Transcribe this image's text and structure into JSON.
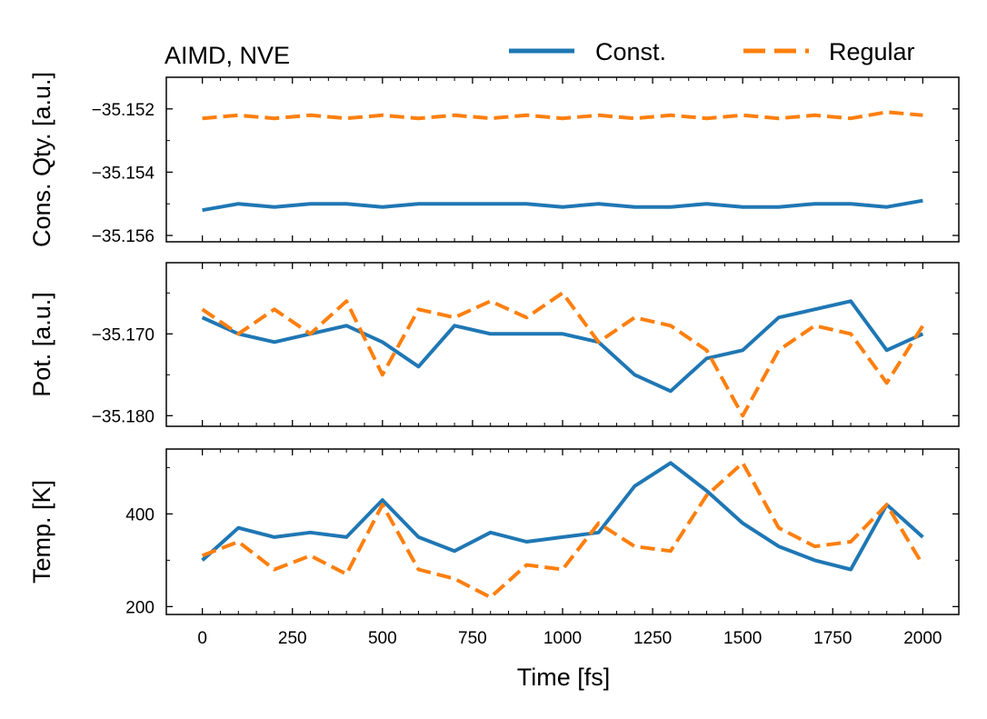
{
  "chart_data": {
    "type": "line",
    "title": "AIMD, NVE",
    "xlabel": "Time [fs]",
    "xlim": [
      -100,
      2100
    ],
    "xticks": [
      0,
      250,
      500,
      750,
      1000,
      1250,
      1500,
      1750,
      2000
    ],
    "xtick_labels": [
      "0",
      "250",
      "500",
      "750",
      "1000",
      "1250",
      "1500",
      "1750",
      "2000"
    ],
    "legend": {
      "placement": "top-right",
      "entries": [
        {
          "name": "Const.",
          "color": "#1f77b4",
          "style": "solid"
        },
        {
          "name": "Regular",
          "color": "#ff7f0e",
          "style": "dashed"
        }
      ]
    },
    "panels": [
      {
        "name": "conserved",
        "ylabel": "Cons. Qty. [a.u.]",
        "ylim": [
          -35.1562,
          -35.151
        ],
        "yticks": [
          -35.152,
          -35.154,
          -35.156
        ],
        "ytick_labels": [
          "−35.152",
          "−35.154",
          "−35.156"
        ],
        "series": [
          {
            "name": "Const.",
            "color": "#1f77b4",
            "style": "solid",
            "x": [
              0,
              100,
              200,
              300,
              400,
              500,
              600,
              700,
              800,
              900,
              1000,
              1100,
              1200,
              1300,
              1400,
              1500,
              1600,
              1700,
              1800,
              1900,
              2000
            ],
            "y": [
              -35.1552,
              -35.155,
              -35.1551,
              -35.155,
              -35.155,
              -35.1551,
              -35.155,
              -35.155,
              -35.155,
              -35.155,
              -35.1551,
              -35.155,
              -35.1551,
              -35.1551,
              -35.155,
              -35.1551,
              -35.1551,
              -35.155,
              -35.155,
              -35.1551,
              -35.1549
            ]
          },
          {
            "name": "Regular",
            "color": "#ff7f0e",
            "style": "dashed",
            "x": [
              0,
              100,
              200,
              300,
              400,
              500,
              600,
              700,
              800,
              900,
              1000,
              1100,
              1200,
              1300,
              1400,
              1500,
              1600,
              1700,
              1800,
              1900,
              2000
            ],
            "y": [
              -35.1523,
              -35.1522,
              -35.1523,
              -35.1522,
              -35.1523,
              -35.1522,
              -35.1523,
              -35.1522,
              -35.1523,
              -35.1522,
              -35.1523,
              -35.1522,
              -35.1523,
              -35.1522,
              -35.1523,
              -35.1522,
              -35.1523,
              -35.1522,
              -35.1523,
              -35.1521,
              -35.1522
            ]
          }
        ]
      },
      {
        "name": "potential",
        "ylabel": "Pot. [a.u.]",
        "ylim": [
          -35.1813,
          -35.1613
        ],
        "yticks": [
          -35.17,
          -35.18
        ],
        "ytick_labels": [
          "−35.170",
          "−35.180"
        ],
        "series": [
          {
            "name": "Const.",
            "color": "#1f77b4",
            "style": "solid",
            "x": [
              0,
              100,
              200,
              300,
              400,
              500,
              600,
              700,
              800,
              900,
              1000,
              1100,
              1200,
              1300,
              1400,
              1500,
              1600,
              1700,
              1800,
              1900,
              2000
            ],
            "y": [
              -35.168,
              -35.17,
              -35.171,
              -35.17,
              -35.169,
              -35.171,
              -35.174,
              -35.169,
              -35.17,
              -35.17,
              -35.17,
              -35.171,
              -35.175,
              -35.177,
              -35.173,
              -35.172,
              -35.168,
              -35.167,
              -35.166,
              -35.172,
              -35.17
            ]
          },
          {
            "name": "Regular",
            "color": "#ff7f0e",
            "style": "dashed",
            "x": [
              0,
              100,
              200,
              300,
              400,
              500,
              600,
              700,
              800,
              900,
              1000,
              1100,
              1200,
              1300,
              1400,
              1500,
              1600,
              1700,
              1800,
              1900,
              2000
            ],
            "y": [
              -35.167,
              -35.17,
              -35.167,
              -35.17,
              -35.166,
              -35.175,
              -35.167,
              -35.168,
              -35.166,
              -35.168,
              -35.165,
              -35.171,
              -35.168,
              -35.169,
              -35.172,
              -35.18,
              -35.172,
              -35.169,
              -35.17,
              -35.176,
              -35.169
            ]
          }
        ]
      },
      {
        "name": "temperature",
        "ylabel": "Temp. [K]",
        "ylim": [
          183,
          540
        ],
        "yticks": [
          200,
          400
        ],
        "ytick_labels": [
          "200",
          "400"
        ],
        "series": [
          {
            "name": "Const.",
            "color": "#1f77b4",
            "style": "solid",
            "x": [
              0,
              100,
              200,
              300,
              400,
              500,
              600,
              700,
              800,
              900,
              1000,
              1100,
              1200,
              1300,
              1400,
              1500,
              1600,
              1700,
              1800,
              1900,
              2000
            ],
            "y": [
              300,
              370,
              350,
              360,
              350,
              430,
              350,
              320,
              360,
              340,
              350,
              360,
              460,
              510,
              450,
              380,
              330,
              300,
              280,
              420,
              350
            ]
          },
          {
            "name": "Regular",
            "color": "#ff7f0e",
            "style": "dashed",
            "x": [
              0,
              100,
              200,
              300,
              400,
              500,
              600,
              700,
              800,
              900,
              1000,
              1100,
              1200,
              1300,
              1400,
              1500,
              1600,
              1700,
              1800,
              1900,
              2000
            ],
            "y": [
              310,
              340,
              280,
              310,
              270,
              420,
              280,
              260,
              220,
              290,
              280,
              380,
              330,
              320,
              440,
              510,
              370,
              330,
              340,
              420,
              290
            ]
          }
        ]
      }
    ]
  }
}
